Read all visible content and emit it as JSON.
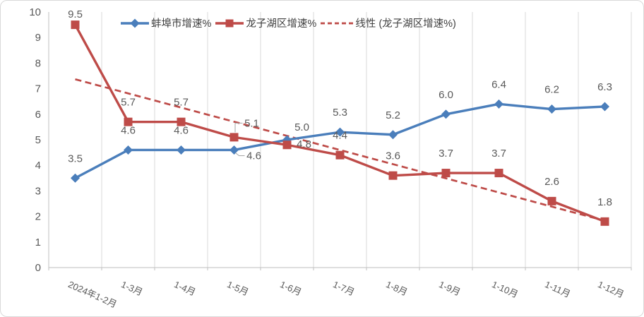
{
  "chart_data": {
    "type": "line",
    "title": "",
    "categories": [
      "2024年1-2月",
      "1-3月",
      "1-4月",
      "1-5月",
      "1-6月",
      "1-7月",
      "1-8月",
      "1-9月",
      "1-10月",
      "1-11月",
      "1-12月"
    ],
    "series": [
      {
        "name": "蚌埠市增速%",
        "marker": "diamond",
        "color": "#4A7EBB",
        "values": [
          3.5,
          4.6,
          4.6,
          4.6,
          5.0,
          5.3,
          5.2,
          6.0,
          6.4,
          6.2,
          6.3
        ]
      },
      {
        "name": "龙子湖区增速%",
        "marker": "square",
        "color": "#BE4B48",
        "values": [
          9.5,
          5.7,
          5.7,
          5.1,
          4.8,
          4.4,
          3.6,
          3.7,
          3.7,
          2.6,
          1.8
        ]
      }
    ],
    "trendline": {
      "name": "线性 (龙子湖区增速%)",
      "color": "#BE4B48",
      "style": "dashed",
      "based_on": "龙子湖区增速%"
    },
    "ylim": [
      0,
      10
    ],
    "ytick_interval": 1,
    "ytick_labels": [
      "0",
      "1",
      "2",
      "3",
      "4",
      "5",
      "6",
      "7",
      "8",
      "9",
      "10"
    ],
    "grid": "vertical-only",
    "legend_position": "top",
    "data_labels_shown": true,
    "label_color": "#595959",
    "grid_color": "#D9D9D9",
    "axis_color": "#BFBFBF"
  }
}
